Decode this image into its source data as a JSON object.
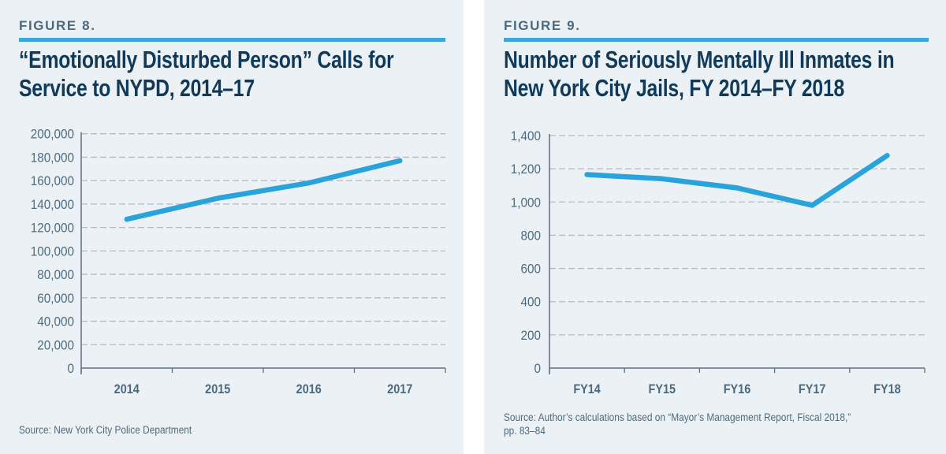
{
  "colors": {
    "panel_bg": "#ecf1f6",
    "accent": "#3ba7dd",
    "line": "#29a3dc",
    "title": "#0f3a5c",
    "label": "#4b6a80",
    "grid": "#b3bbc3",
    "axis": "#5d6f7d"
  },
  "figures": [
    {
      "label": "FIGURE 8.",
      "title_lines": [
        "“Emotionally Disturbed Person” Calls for",
        "Service to NYPD, 2014–17"
      ],
      "source_lines": [
        "Source: New York City Police Department"
      ]
    },
    {
      "label": "FIGURE 9.",
      "title_lines": [
        "Number of Seriously Mentally Ill Inmates in",
        "New York City Jails, FY 2014–FY 2018"
      ],
      "source_lines": [
        "Source: Author’s calculations based on “Mayor’s Management Report, Fiscal 2018,”",
        "pp. 83–84"
      ]
    }
  ],
  "chart_data": [
    {
      "type": "line",
      "title": "“Emotionally Disturbed Person” Calls for Service to NYPD, 2014–17",
      "xlabel": "",
      "ylabel": "",
      "categories": [
        "2014",
        "2015",
        "2016",
        "2017"
      ],
      "series": [
        {
          "name": "EDP calls",
          "values": [
            127000,
            145000,
            158000,
            177000
          ]
        }
      ],
      "ylim": [
        0,
        200000
      ],
      "yticks": [
        0,
        20000,
        40000,
        60000,
        80000,
        100000,
        120000,
        140000,
        160000,
        180000,
        200000
      ],
      "ytick_labels": [
        "0",
        "20,000",
        "40,000",
        "60,000",
        "80,000",
        "100,000",
        "120,000",
        "140,000",
        "160,000",
        "180,000",
        "200,000"
      ],
      "grid": true,
      "legend": "none"
    },
    {
      "type": "line",
      "title": "Number of Seriously Mentally Ill Inmates in New York City Jails, FY 2014–FY 2018",
      "xlabel": "",
      "ylabel": "",
      "categories": [
        "FY14",
        "FY15",
        "FY16",
        "FY17",
        "FY18"
      ],
      "series": [
        {
          "name": "Seriously mentally ill inmates",
          "values": [
            1165,
            1140,
            1085,
            980,
            1280
          ]
        }
      ],
      "ylim": [
        0,
        1400
      ],
      "yticks": [
        0,
        200,
        400,
        600,
        800,
        1000,
        1200,
        1400
      ],
      "ytick_labels": [
        "0",
        "200",
        "400",
        "600",
        "800",
        "1,000",
        "1,200",
        "1,400"
      ],
      "grid": true,
      "legend": "none"
    }
  ]
}
